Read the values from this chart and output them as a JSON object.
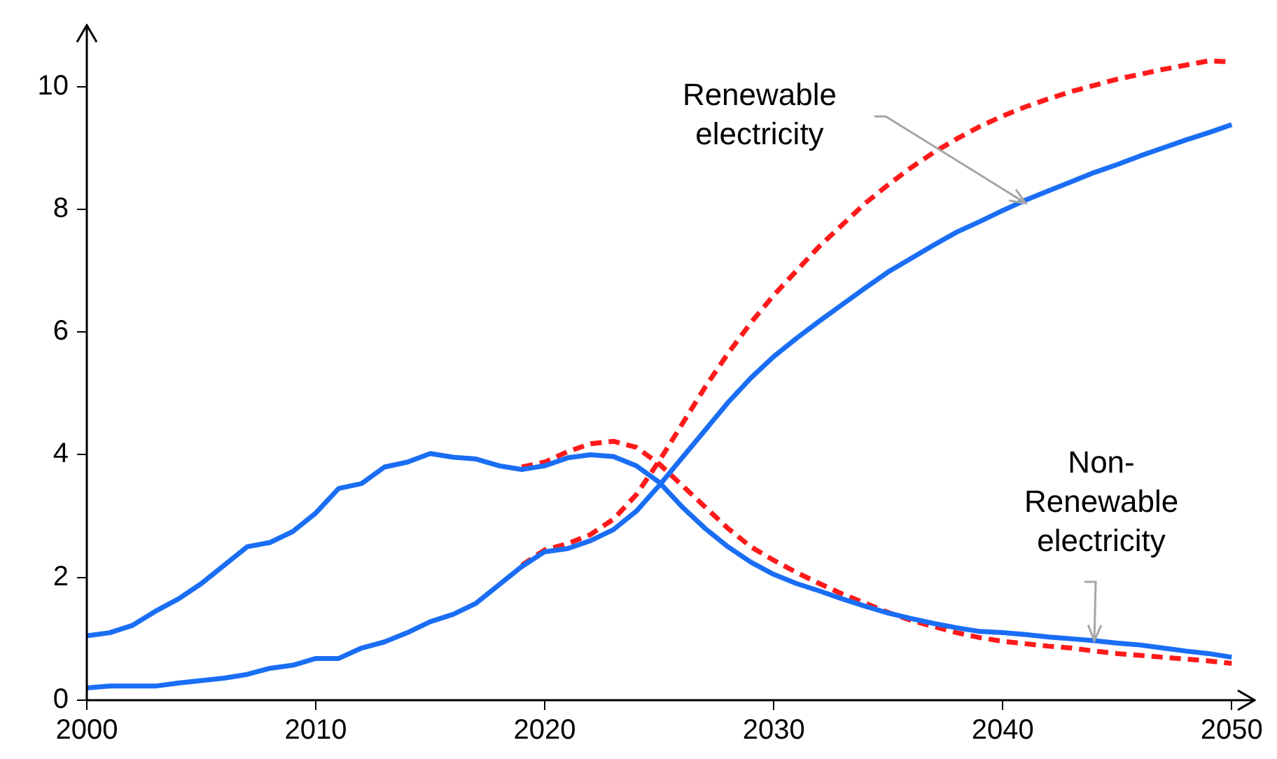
{
  "chart_data": {
    "type": "line",
    "xlim": [
      2000,
      2051
    ],
    "xticks": [
      2000,
      2010,
      2020,
      2030,
      2040,
      2050
    ],
    "ylim": [
      0,
      11
    ],
    "yticks": [
      0,
      2,
      4,
      6,
      8,
      10
    ],
    "grid": false,
    "legend": false,
    "marker": "none",
    "series": [
      {
        "color": "#1a6ef5",
        "line_style": "solid",
        "x": [
          2000,
          2001,
          2002,
          2003,
          2004,
          2005,
          2006,
          2007,
          2008,
          2009,
          2010,
          2011,
          2012,
          2013,
          2014,
          2015,
          2016,
          2017,
          2018,
          2019,
          2020,
          2021,
          2022,
          2023,
          2024,
          2025,
          2026,
          2027,
          2028,
          2029,
          2030,
          2031,
          2032,
          2033,
          2034,
          2035,
          2036,
          2037,
          2038,
          2039,
          2040,
          2041,
          2042,
          2043,
          2044,
          2045,
          2046,
          2047,
          2048,
          2049,
          2050
        ],
        "values": [
          1.05,
          1.1,
          1.22,
          1.45,
          1.65,
          1.9,
          2.2,
          2.5,
          2.57,
          2.75,
          3.05,
          3.45,
          3.53,
          3.8,
          3.88,
          4.02,
          3.96,
          3.93,
          3.82,
          3.76,
          3.82,
          3.95,
          4.0,
          3.97,
          3.82,
          3.55,
          3.15,
          2.8,
          2.5,
          2.25,
          2.05,
          1.9,
          1.78,
          1.65,
          1.53,
          1.42,
          1.33,
          1.25,
          1.18,
          1.12,
          1.1,
          1.07,
          1.03,
          1.0,
          0.97,
          0.93,
          0.9,
          0.85,
          0.8,
          0.76,
          0.7
        ]
      },
      {
        "color": "#1a6ef5",
        "line_style": "solid",
        "x": [
          2000,
          2001,
          2002,
          2003,
          2004,
          2005,
          2006,
          2007,
          2008,
          2009,
          2010,
          2011,
          2012,
          2013,
          2014,
          2015,
          2016,
          2017,
          2018,
          2019,
          2020,
          2021,
          2022,
          2023,
          2024,
          2025,
          2026,
          2027,
          2028,
          2029,
          2030,
          2031,
          2032,
          2033,
          2034,
          2035,
          2036,
          2037,
          2038,
          2039,
          2040,
          2041,
          2042,
          2043,
          2044,
          2045,
          2046,
          2047,
          2048,
          2049,
          2050
        ],
        "values": [
          0.2,
          0.23,
          0.23,
          0.23,
          0.28,
          0.32,
          0.36,
          0.42,
          0.52,
          0.57,
          0.68,
          0.68,
          0.85,
          0.95,
          1.1,
          1.28,
          1.4,
          1.58,
          1.88,
          2.18,
          2.42,
          2.47,
          2.6,
          2.78,
          3.08,
          3.5,
          3.95,
          4.4,
          4.85,
          5.25,
          5.6,
          5.9,
          6.18,
          6.45,
          6.72,
          6.98,
          7.2,
          7.42,
          7.63,
          7.8,
          7.98,
          8.15,
          8.3,
          8.45,
          8.6,
          8.73,
          8.87,
          9.0,
          9.13,
          9.25,
          9.38
        ]
      },
      {
        "color": "#ff1a1a",
        "line_style": "dashed",
        "x": [
          2019,
          2020,
          2021,
          2022,
          2023,
          2024,
          2025,
          2026,
          2027,
          2028,
          2029,
          2030,
          2031,
          2032,
          2033,
          2034,
          2035,
          2036,
          2037,
          2038,
          2039,
          2040,
          2041,
          2042,
          2043,
          2044,
          2045,
          2046,
          2047,
          2048,
          2049,
          2050
        ],
        "values": [
          2.2,
          2.45,
          2.55,
          2.7,
          2.95,
          3.35,
          3.9,
          4.5,
          5.1,
          5.65,
          6.15,
          6.6,
          7.0,
          7.4,
          7.75,
          8.1,
          8.4,
          8.68,
          8.93,
          9.15,
          9.35,
          9.52,
          9.67,
          9.8,
          9.92,
          10.02,
          10.12,
          10.2,
          10.28,
          10.35,
          10.42,
          10.4
        ]
      },
      {
        "color": "#ff1a1a",
        "line_style": "dashed",
        "x": [
          2019,
          2020,
          2021,
          2022,
          2023,
          2024,
          2025,
          2026,
          2027,
          2028,
          2029,
          2030,
          2031,
          2032,
          2033,
          2034,
          2035,
          2036,
          2037,
          2038,
          2039,
          2040,
          2041,
          2042,
          2043,
          2044,
          2045,
          2046,
          2047,
          2048,
          2049,
          2050
        ],
        "values": [
          3.8,
          3.88,
          4.05,
          4.18,
          4.22,
          4.12,
          3.85,
          3.5,
          3.15,
          2.8,
          2.5,
          2.28,
          2.08,
          1.9,
          1.73,
          1.58,
          1.43,
          1.3,
          1.2,
          1.1,
          1.02,
          0.96,
          0.92,
          0.88,
          0.85,
          0.8,
          0.76,
          0.73,
          0.7,
          0.67,
          0.64,
          0.6
        ]
      }
    ],
    "annotations": [
      {
        "text": "Renewable electricity",
        "x": 2041,
        "y": 8.1
      },
      {
        "text": "Non-Renewable electricity",
        "x": 2044,
        "y": 0.97
      }
    ]
  }
}
